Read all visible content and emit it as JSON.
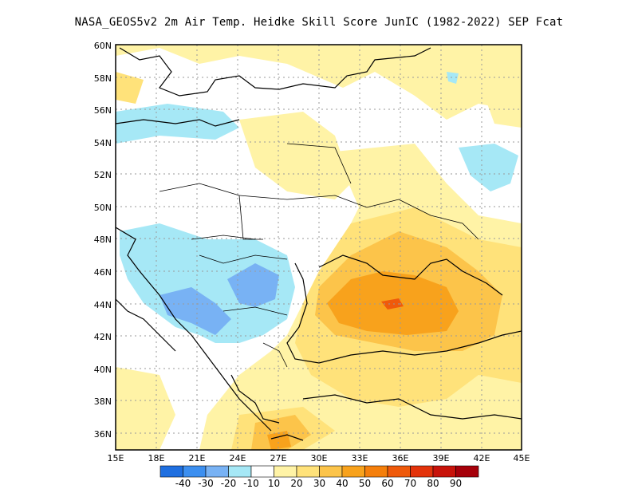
{
  "title": "NASA_GEOS5v2  2m Air Temp. Heidke Skill Score JunIC (1982-2022) SEP Fcat",
  "map": {
    "lon_range": [
      15,
      45
    ],
    "lat_range": [
      35,
      60
    ],
    "lat_ticks": [
      "36N",
      "38N",
      "40N",
      "42N",
      "44N",
      "46N",
      "48N",
      "50N",
      "52N",
      "54N",
      "56N",
      "58N",
      "60N"
    ],
    "lon_ticks": [
      "15E",
      "18E",
      "21E",
      "24E",
      "27E",
      "30E",
      "33E",
      "36E",
      "39E",
      "42E",
      "45E"
    ],
    "gridlines": true
  },
  "colorbar": {
    "colors": [
      "#1f6fe0",
      "#3c8ff0",
      "#78b2f4",
      "#a6e8f6",
      "#ffffff",
      "#fff3a6",
      "#ffe27a",
      "#fcc44a",
      "#f8a21c",
      "#f57f0b",
      "#ef5a0b",
      "#e3330b",
      "#c8130a",
      "#a6000a"
    ],
    "labels": [
      "-40",
      "-30",
      "-20",
      "-10",
      "10",
      "20",
      "30",
      "40",
      "50",
      "60",
      "70",
      "80",
      "90"
    ]
  }
}
